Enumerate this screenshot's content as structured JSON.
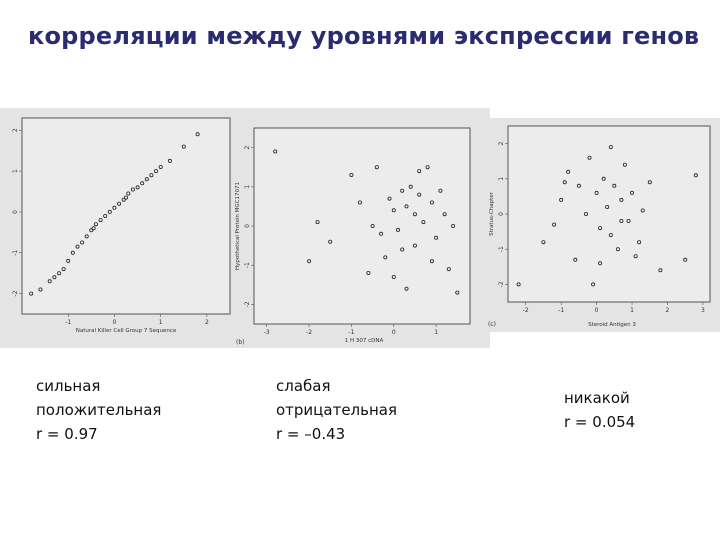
{
  "slide": {
    "title": "корреляции между уровнями экспрессии генов"
  },
  "panels": [
    {
      "caption": [
        "сильная",
        "положительная",
        "r = 0.97"
      ],
      "panel_letter": "",
      "xlabel": "Natural Killer Cell Group 7 Sequence",
      "ylabel": "",
      "xticks": [
        "-1",
        "0",
        "1",
        "2"
      ],
      "yticks": [
        "-2",
        "-1",
        "0",
        "1",
        "2"
      ]
    },
    {
      "caption": [
        "слабая",
        "отрицательная",
        "r = –0.43"
      ],
      "panel_letter": "(b)",
      "xlabel": "1 H 307 cDNA",
      "ylabel": "Hypothetical Protein MGC17071",
      "xticks": [
        "-3",
        "-2",
        "-1",
        "0",
        "1"
      ],
      "yticks": [
        "-2",
        "-1",
        "0",
        "1",
        "2"
      ]
    },
    {
      "caption": [
        "никакой",
        "r = 0.054"
      ],
      "panel_letter": "(c)",
      "xlabel": "Steroid Antigen 3",
      "ylabel": "Stratus-Chapter",
      "xticks": [
        "-2",
        "-1",
        "0",
        "1",
        "2",
        "3"
      ],
      "yticks": [
        "-2",
        "-1",
        "0",
        "1",
        "2"
      ]
    }
  ],
  "chart_data": [
    {
      "type": "scatter",
      "xlim": [
        -2,
        2.5
      ],
      "ylim": [
        -2.5,
        2.3
      ],
      "points": [
        [
          -1.8,
          -2.0
        ],
        [
          -1.6,
          -1.9
        ],
        [
          -1.4,
          -1.7
        ],
        [
          -1.3,
          -1.6
        ],
        [
          -1.2,
          -1.5
        ],
        [
          -1.1,
          -1.4
        ],
        [
          -1.0,
          -1.2
        ],
        [
          -0.9,
          -1.0
        ],
        [
          -0.8,
          -0.85
        ],
        [
          -0.7,
          -0.75
        ],
        [
          -0.6,
          -0.6
        ],
        [
          -0.5,
          -0.45
        ],
        [
          -0.45,
          -0.4
        ],
        [
          -0.4,
          -0.3
        ],
        [
          -0.3,
          -0.2
        ],
        [
          -0.2,
          -0.1
        ],
        [
          -0.1,
          0.0
        ],
        [
          0.0,
          0.1
        ],
        [
          0.1,
          0.2
        ],
        [
          0.2,
          0.3
        ],
        [
          0.25,
          0.35
        ],
        [
          0.3,
          0.45
        ],
        [
          0.4,
          0.55
        ],
        [
          0.5,
          0.6
        ],
        [
          0.6,
          0.7
        ],
        [
          0.7,
          0.8
        ],
        [
          0.8,
          0.9
        ],
        [
          0.9,
          1.0
        ],
        [
          1.0,
          1.1
        ],
        [
          1.2,
          1.25
        ],
        [
          1.5,
          1.6
        ],
        [
          1.8,
          1.9
        ]
      ]
    },
    {
      "type": "scatter",
      "xlim": [
        -3.3,
        1.8
      ],
      "ylim": [
        -2.5,
        2.5
      ],
      "points": [
        [
          -2.8,
          1.9
        ],
        [
          -1.0,
          1.3
        ],
        [
          -0.8,
          0.6
        ],
        [
          -0.5,
          0.0
        ],
        [
          -0.3,
          -0.2
        ],
        [
          -0.1,
          0.7
        ],
        [
          0.0,
          0.4
        ],
        [
          0.1,
          -0.1
        ],
        [
          0.2,
          0.9
        ],
        [
          0.3,
          0.5
        ],
        [
          0.4,
          1.0
        ],
        [
          0.5,
          0.3
        ],
        [
          0.6,
          0.8
        ],
        [
          0.7,
          0.1
        ],
        [
          0.8,
          1.5
        ],
        [
          0.9,
          0.6
        ],
        [
          1.0,
          -0.3
        ],
        [
          1.1,
          0.9
        ],
        [
          1.2,
          0.3
        ],
        [
          -0.2,
          -0.8
        ],
        [
          0.2,
          -0.6
        ],
        [
          0.5,
          -0.5
        ],
        [
          0.9,
          -0.9
        ],
        [
          1.3,
          -1.1
        ],
        [
          -0.6,
          -1.2
        ],
        [
          0.3,
          -1.6
        ],
        [
          -1.5,
          -0.4
        ],
        [
          -2.0,
          -0.9
        ],
        [
          1.5,
          -1.7
        ],
        [
          -0.4,
          1.5
        ],
        [
          0.6,
          1.4
        ],
        [
          1.4,
          0.0
        ],
        [
          -1.8,
          0.1
        ],
        [
          0.0,
          -1.3
        ]
      ]
    },
    {
      "type": "scatter",
      "xlim": [
        -2.5,
        3.2
      ],
      "ylim": [
        -2.5,
        2.5
      ],
      "points": [
        [
          -2.2,
          -2.0
        ],
        [
          -1.5,
          -0.8
        ],
        [
          -1.0,
          0.4
        ],
        [
          -0.8,
          1.2
        ],
        [
          -0.5,
          0.8
        ],
        [
          -0.3,
          0.0
        ],
        [
          -0.2,
          1.6
        ],
        [
          0.0,
          0.6
        ],
        [
          0.1,
          -0.4
        ],
        [
          0.2,
          1.0
        ],
        [
          0.3,
          0.2
        ],
        [
          0.4,
          -0.6
        ],
        [
          0.5,
          0.8
        ],
        [
          0.6,
          -1.0
        ],
        [
          0.7,
          0.4
        ],
        [
          0.8,
          1.4
        ],
        [
          0.9,
          -0.2
        ],
        [
          1.0,
          0.6
        ],
        [
          1.2,
          -0.8
        ],
        [
          1.3,
          0.1
        ],
        [
          1.5,
          0.9
        ],
        [
          -0.6,
          -1.3
        ],
        [
          -1.2,
          -0.3
        ],
        [
          0.1,
          -1.4
        ],
        [
          1.8,
          -1.6
        ],
        [
          2.5,
          -1.3
        ],
        [
          2.8,
          1.1
        ],
        [
          -0.1,
          -2.0
        ],
        [
          0.4,
          1.9
        ],
        [
          1.1,
          -1.2
        ],
        [
          -0.9,
          0.9
        ],
        [
          0.7,
          -0.2
        ]
      ]
    }
  ]
}
